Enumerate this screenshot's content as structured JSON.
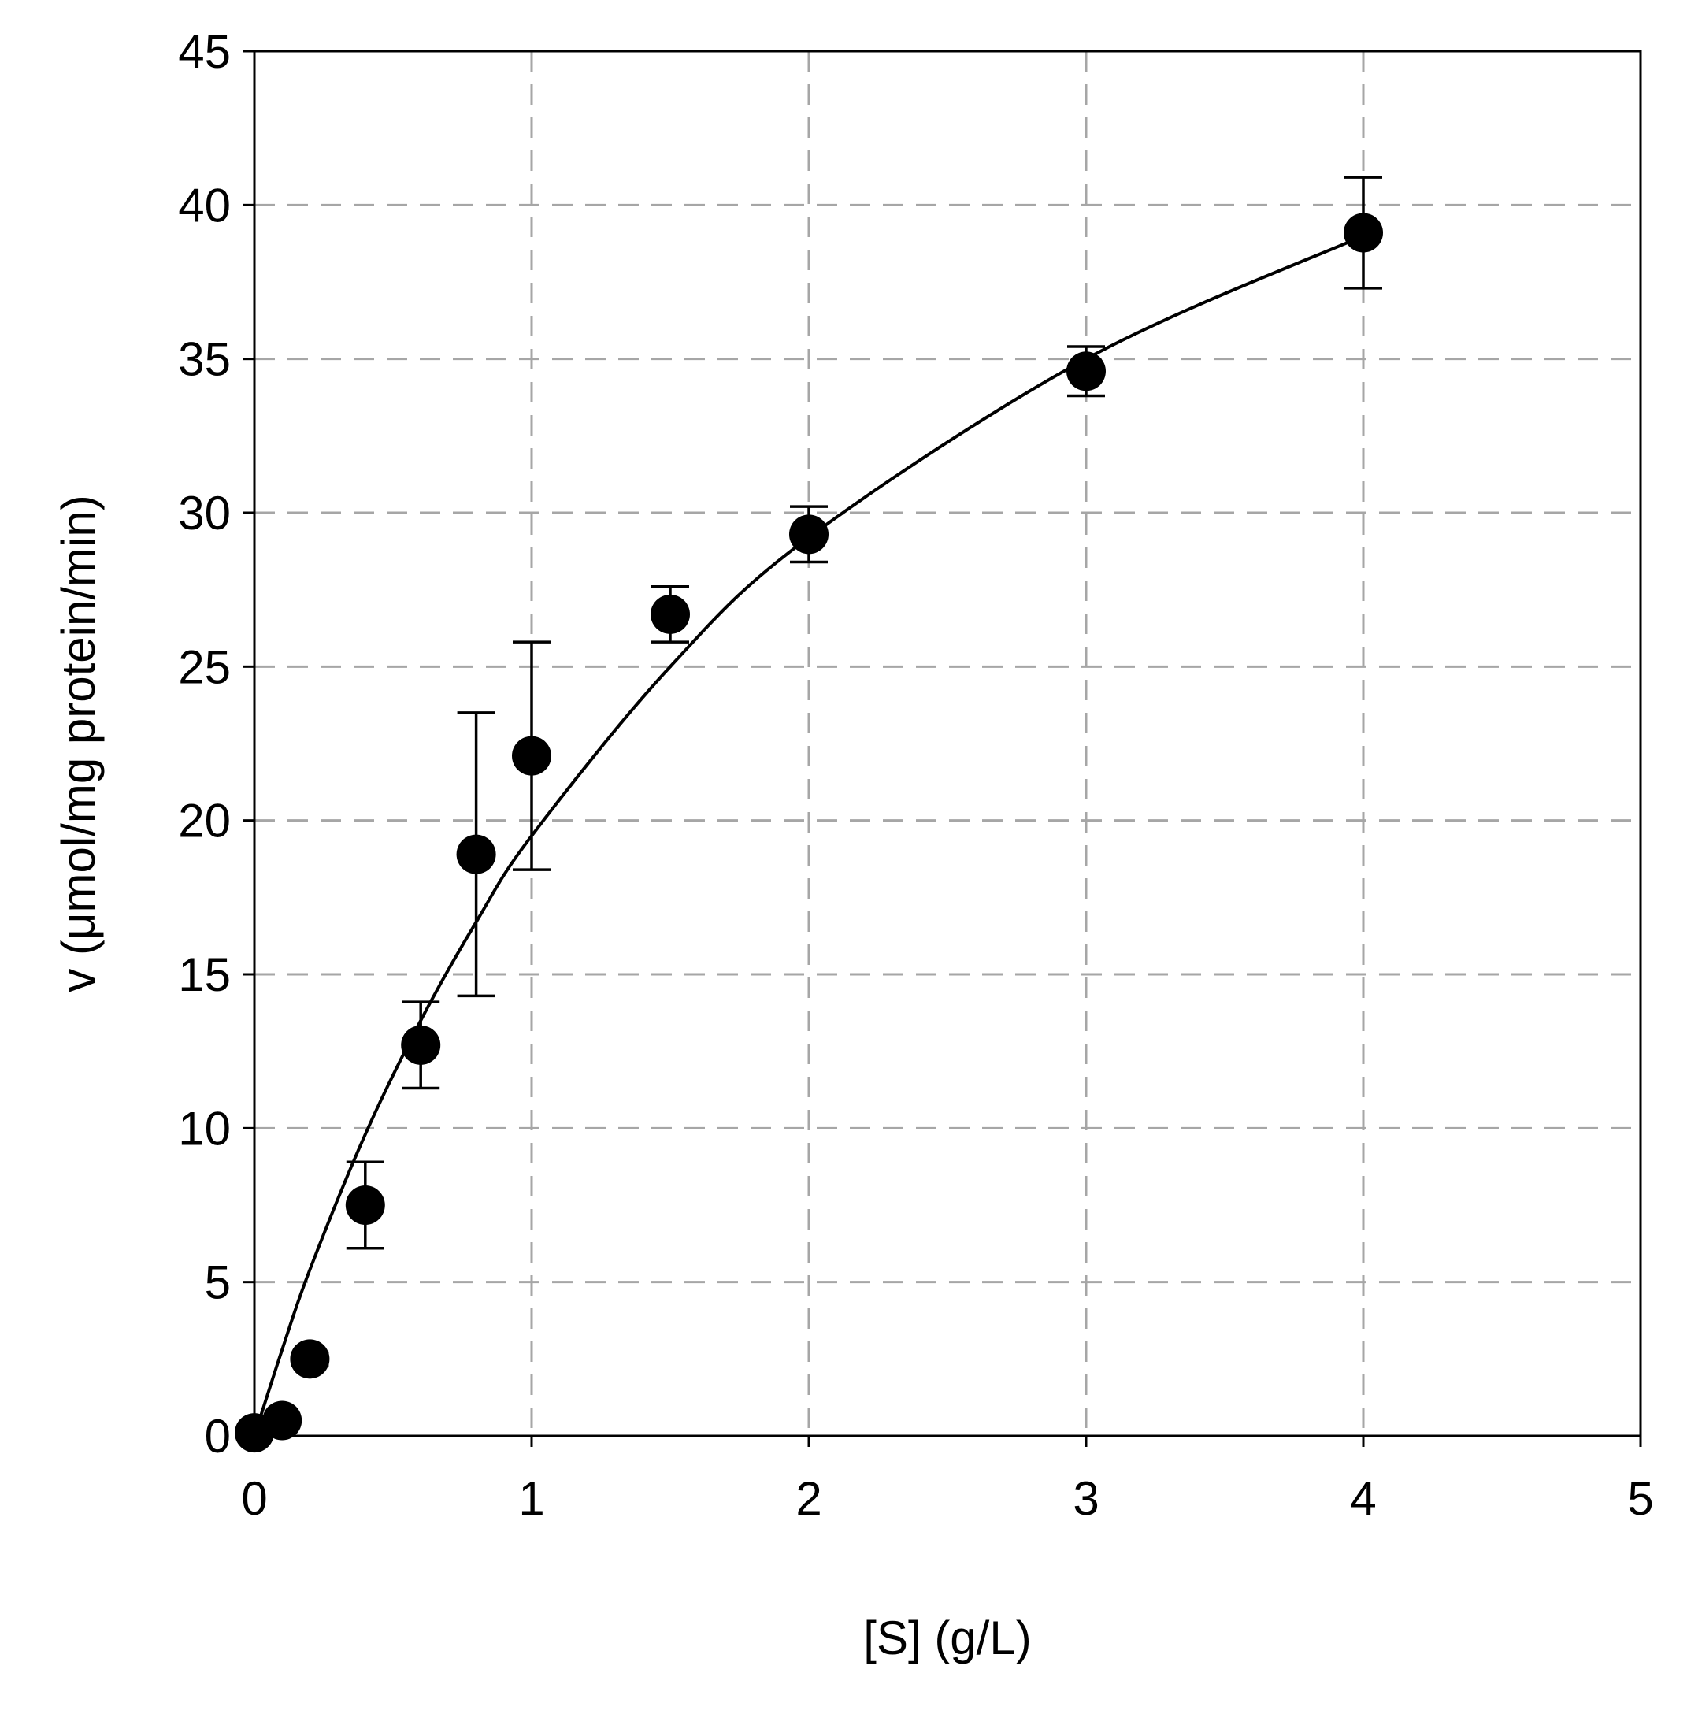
{
  "chart_data": {
    "type": "scatter",
    "title": "",
    "xlabel": "[S] (g/L)",
    "ylabel": "v (μmol/mg protein/min)",
    "xlim": [
      0,
      5
    ],
    "ylim": [
      0,
      45
    ],
    "xticks": [
      "0",
      "1",
      "2",
      "3",
      "4",
      "5"
    ],
    "yticks": [
      "0",
      "5",
      "10",
      "15",
      "20",
      "25",
      "30",
      "35",
      "40",
      "45"
    ],
    "grid": true,
    "legend": "none",
    "series": [
      {
        "marker": "filled-circle",
        "color": "#000000",
        "points": [
          {
            "x": 0.0,
            "y": 0.1,
            "err": 0.0
          },
          {
            "x": 0.1,
            "y": 0.5,
            "err": 0.1
          },
          {
            "x": 0.2,
            "y": 2.5,
            "err": 0.2
          },
          {
            "x": 0.4,
            "y": 7.5,
            "err": 1.4
          },
          {
            "x": 0.6,
            "y": 12.7,
            "err": 1.4
          },
          {
            "x": 0.8,
            "y": 18.9,
            "err": 4.6
          },
          {
            "x": 1.0,
            "y": 22.1,
            "err": 3.7
          },
          {
            "x": 1.5,
            "y": 26.7,
            "err": 0.9
          },
          {
            "x": 2.0,
            "y": 29.3,
            "err": 0.9
          },
          {
            "x": 3.0,
            "y": 34.6,
            "err": 0.8
          },
          {
            "x": 4.0,
            "y": 39.1,
            "err": 1.8
          }
        ]
      }
    ],
    "fit_curve": {
      "model": "Michaelis-Menten",
      "color": "#000000",
      "x_range": [
        0,
        4
      ],
      "points": [
        {
          "x": 0.0,
          "y": 0.0
        },
        {
          "x": 0.1,
          "y": 2.8
        },
        {
          "x": 0.2,
          "y": 5.4
        },
        {
          "x": 0.4,
          "y": 9.8
        },
        {
          "x": 0.6,
          "y": 13.5
        },
        {
          "x": 0.8,
          "y": 16.7
        },
        {
          "x": 1.0,
          "y": 19.5
        },
        {
          "x": 1.5,
          "y": 25.0
        },
        {
          "x": 2.0,
          "y": 29.2
        },
        {
          "x": 3.0,
          "y": 35.0
        },
        {
          "x": 4.0,
          "y": 39.0
        }
      ]
    },
    "colors": {
      "grid": "#a6a6a6",
      "axes": "#000000",
      "marker": "#000000"
    }
  }
}
